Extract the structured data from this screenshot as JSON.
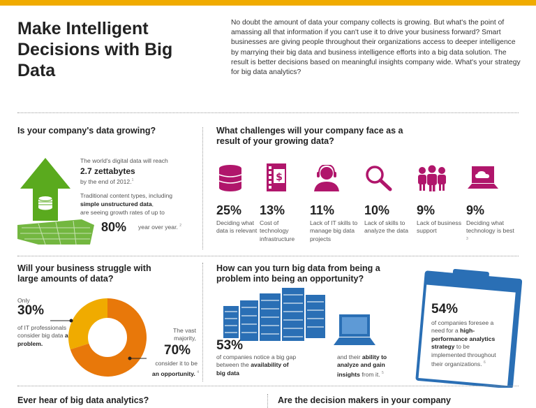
{
  "header": {
    "title": "Make Intelligent Decisions with Big Data",
    "intro": "No doubt the amount of data your company collects is growing. But what's the point of amassing all that information if you can't use it to drive your business forward? Smart businesses are giving people throughout their organizations access to deeper intelligence by marrying their big data and business intelligence efforts into a big data solution. The result is better decisions based on meaningful insights company wide. What's your strategy for big data analytics?"
  },
  "growing": {
    "title": "Is your company's data growing?",
    "line1": "The world's digital data will reach",
    "stat": "2.7 zettabytes",
    "line2": "by the end of 2012.",
    "ref1": "1",
    "line3": "Traditional content types, including",
    "bold": "simple unstructured data",
    "line4": "are seeing growth rates of up to",
    "pct": "80%",
    "suffix": "year over year.",
    "ref2": "2"
  },
  "challenges": {
    "title": "What challenges will your company face as a result of your growing data?",
    "items": [
      {
        "pct": "25%",
        "label": "Deciding what data is relevant",
        "icon": "database-icon"
      },
      {
        "pct": "13%",
        "label": "Cost of technology infrastructure",
        "icon": "building-dollar-icon"
      },
      {
        "pct": "11%",
        "label": "Lack of IT skills to manage big data projects",
        "icon": "headset-user-icon"
      },
      {
        "pct": "10%",
        "label": "Lack of skills to analyze the data",
        "icon": "magnifier-icon"
      },
      {
        "pct": "9%",
        "label": "Lack of business support",
        "icon": "people-group-icon"
      },
      {
        "pct": "9%",
        "label": "Deciding what technology is best",
        "icon": "laptop-cloud-icon"
      }
    ],
    "ref": "3"
  },
  "struggle": {
    "title": "Will your business struggle with large amounts of data?",
    "only": "Only",
    "pct1": "30%",
    "text1": "of IT professionals consider big data",
    "bold1": "a problem.",
    "vast": "The vast majority,",
    "pct2": "70%",
    "text2": "consider it to be",
    "bold2": "an opportunity.",
    "ref": "4",
    "chart_data": {
      "type": "pie",
      "categories": [
        "a problem",
        "an opportunity"
      ],
      "values": [
        30,
        70
      ],
      "colors": [
        "#f0ab00",
        "#e8780a"
      ]
    }
  },
  "opportunity": {
    "title": "How can you turn big data from being a problem into being an opportunity?",
    "pct1": "53%",
    "text1": "of companies notice a big gap between the",
    "bold1": "availability of big data",
    "text2": "and their",
    "bold2": "ability to analyze and gain insights",
    "text3": "from it.",
    "ref1": "5",
    "pct2": "54%",
    "text4": "of companies foresee a need for a",
    "bold3": "high-performance analytics strategy",
    "text5": "to be implemented throughout their organizations.",
    "ref2": "6"
  },
  "bottom": {
    "left_title": "Ever hear of big data analytics?",
    "right_title": "Are the decision makers in your company"
  },
  "colors": {
    "accent": "#f0ab00",
    "magenta": "#b0166b",
    "green": "#5aaa1e",
    "blue": "#2a6fb5",
    "orange": "#e8780a"
  }
}
